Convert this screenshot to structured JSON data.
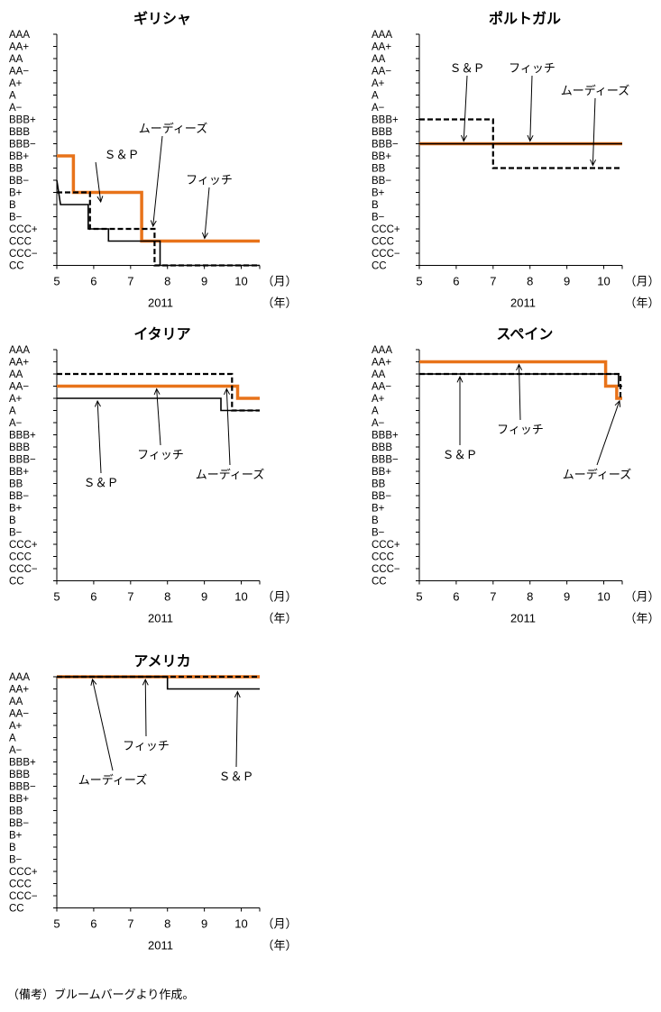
{
  "figure_note": "（備考）ブルームバーグより作成。",
  "colors": {
    "S&P": "#000000",
    "フィッチ": "#E8731A",
    "ムーディーズ": "#000000"
  },
  "chart_data": [
    {
      "type": "line",
      "step": true,
      "title": "ギリシャ",
      "rating_scale": [
        "AAA",
        "AA+",
        "AA",
        "AA−",
        "A+",
        "A",
        "A−",
        "BBB+",
        "BBB",
        "BBB−",
        "BB+",
        "BB",
        "BB−",
        "B+",
        "B",
        "B−",
        "CCC+",
        "CCC",
        "CCC−",
        "CC"
      ],
      "x_ticks": [
        "5",
        "6",
        "7",
        "8",
        "9",
        "10"
      ],
      "x_unit": "（月）",
      "year_label": "2011",
      "year_unit": "（年）",
      "xlim": [
        5,
        10.5
      ],
      "series": [
        {
          "name": "S＆P",
          "style": "solid-thin",
          "points": [
            [
              5,
              "BB−"
            ],
            [
              5.1,
              "B"
            ],
            [
              5.85,
              "B"
            ],
            [
              5.85,
              "CCC+"
            ],
            [
              6.4,
              "CCC+"
            ],
            [
              6.4,
              "CCC"
            ],
            [
              7.8,
              "CCC"
            ],
            [
              7.8,
              "CC"
            ],
            [
              10.5,
              "CC"
            ]
          ]
        },
        {
          "name": "フィッチ",
          "style": "thick-orange",
          "points": [
            [
              5,
              "BB+"
            ],
            [
              5.45,
              "BB+"
            ],
            [
              5.45,
              "B+"
            ],
            [
              7.3,
              "B+"
            ],
            [
              7.3,
              "CCC"
            ],
            [
              10.5,
              "CCC"
            ]
          ]
        },
        {
          "name": "ムーディーズ",
          "style": "dashed",
          "points": [
            [
              5,
              "B+"
            ],
            [
              5.9,
              "B+"
            ],
            [
              5.9,
              "CCC+"
            ],
            [
              7.65,
              "CCC+"
            ],
            [
              7.65,
              "CC"
            ],
            [
              10.5,
              "CC"
            ]
          ]
        }
      ],
      "annotations": [
        {
          "text": "ムーディーズ",
          "target_x": 7.6,
          "target_y": "CCC+"
        },
        {
          "text": "Ｓ＆Ｐ",
          "target_x": 6.2,
          "target_y": "B"
        },
        {
          "text": "フィッチ",
          "target_x": 9.0,
          "target_y": "CCC"
        }
      ]
    },
    {
      "type": "line",
      "step": true,
      "title": "ポルトガル",
      "rating_scale": [
        "AAA",
        "AA+",
        "AA",
        "AA−",
        "A+",
        "A",
        "A−",
        "BBB+",
        "BBB",
        "BBB−",
        "BB+",
        "BB",
        "BB−",
        "B+",
        "B",
        "B−",
        "CCC+",
        "CCC",
        "CCC−",
        "CC"
      ],
      "x_ticks": [
        "5",
        "6",
        "7",
        "8",
        "9",
        "10"
      ],
      "x_unit": "（月）",
      "year_label": "2011",
      "year_unit": "（年）",
      "xlim": [
        5,
        10.5
      ],
      "series": [
        {
          "name": "S＆P",
          "style": "solid-thin",
          "points": [
            [
              5,
              "BBB−"
            ],
            [
              10.5,
              "BBB−"
            ]
          ]
        },
        {
          "name": "フィッチ",
          "style": "thick-orange",
          "points": [
            [
              5,
              "BBB−"
            ],
            [
              10.5,
              "BBB−"
            ]
          ]
        },
        {
          "name": "ムーディーズ",
          "style": "dashed",
          "points": [
            [
              5,
              "BBB+"
            ],
            [
              7.0,
              "BBB+"
            ],
            [
              7.0,
              "BB"
            ],
            [
              10.5,
              "BB"
            ]
          ]
        }
      ],
      "annotations": [
        {
          "text": "Ｓ＆Ｐ",
          "target_x": 6.2,
          "target_y": "BBB−"
        },
        {
          "text": "フィッチ",
          "target_x": 8.0,
          "target_y": "BBB−"
        },
        {
          "text": "ムーディーズ",
          "target_x": 9.7,
          "target_y": "BB"
        }
      ]
    },
    {
      "type": "line",
      "step": true,
      "title": "イタリア",
      "rating_scale": [
        "AAA",
        "AA+",
        "AA",
        "AA−",
        "A+",
        "A",
        "A−",
        "BBB+",
        "BBB",
        "BBB−",
        "BB+",
        "BB",
        "BB−",
        "B+",
        "B",
        "B−",
        "CCC+",
        "CCC",
        "CCC−",
        "CC"
      ],
      "x_ticks": [
        "5",
        "6",
        "7",
        "8",
        "9",
        "10"
      ],
      "x_unit": "（月）",
      "year_label": "2011",
      "year_unit": "（年）",
      "xlim": [
        5,
        10.5
      ],
      "series": [
        {
          "name": "S＆P",
          "style": "solid-thin",
          "points": [
            [
              5,
              "A+"
            ],
            [
              9.45,
              "A+"
            ],
            [
              9.45,
              "A"
            ],
            [
              10.5,
              "A"
            ]
          ]
        },
        {
          "name": "フィッチ",
          "style": "thick-orange",
          "points": [
            [
              5,
              "AA−"
            ],
            [
              9.9,
              "AA−"
            ],
            [
              9.9,
              "A+"
            ],
            [
              10.5,
              "A+"
            ]
          ]
        },
        {
          "name": "ムーディーズ",
          "style": "dashed",
          "points": [
            [
              5,
              "AA"
            ],
            [
              9.75,
              "AA"
            ],
            [
              9.75,
              "A"
            ],
            [
              10.5,
              "A"
            ]
          ]
        }
      ],
      "annotations": [
        {
          "text": "Ｓ＆Ｐ",
          "target_x": 6.1,
          "target_y": "A+"
        },
        {
          "text": "フィッチ",
          "target_x": 7.7,
          "target_y": "AA−"
        },
        {
          "text": "ムーディーズ",
          "target_x": 9.6,
          "target_y": "AA−"
        }
      ]
    },
    {
      "type": "line",
      "step": true,
      "title": "スペイン",
      "rating_scale": [
        "AAA",
        "AA+",
        "AA",
        "AA−",
        "A+",
        "A",
        "A−",
        "BBB+",
        "BBB",
        "BBB−",
        "BB+",
        "BB",
        "BB−",
        "B+",
        "B",
        "B−",
        "CCC+",
        "CCC",
        "CCC−",
        "CC"
      ],
      "x_ticks": [
        "5",
        "6",
        "7",
        "8",
        "9",
        "10"
      ],
      "x_unit": "（月）",
      "year_label": "2011",
      "year_unit": "（年）",
      "xlim": [
        5,
        10.5
      ],
      "series": [
        {
          "name": "S＆P",
          "style": "solid-thin",
          "points": [
            [
              5,
              "AA"
            ],
            [
              10.4,
              "AA"
            ],
            [
              10.4,
              "AA−"
            ],
            [
              10.5,
              "AA−"
            ]
          ]
        },
        {
          "name": "フィッチ",
          "style": "thick-orange",
          "points": [
            [
              5,
              "AA+"
            ],
            [
              10.05,
              "AA+"
            ],
            [
              10.05,
              "AA−"
            ],
            [
              10.35,
              "AA−"
            ],
            [
              10.35,
              "A+"
            ],
            [
              10.5,
              "A+"
            ]
          ]
        },
        {
          "name": "ムーディーズ",
          "style": "dashed",
          "points": [
            [
              5,
              "AA"
            ],
            [
              10.45,
              "AA"
            ],
            [
              10.45,
              "A+"
            ],
            [
              10.5,
              "A+"
            ]
          ]
        }
      ],
      "annotations": [
        {
          "text": "Ｓ＆Ｐ",
          "target_x": 6.1,
          "target_y": "AA"
        },
        {
          "text": "フィッチ",
          "target_x": 7.7,
          "target_y": "AA+"
        },
        {
          "text": "ムーディーズ",
          "target_x": 10.45,
          "target_y": "A+"
        }
      ]
    },
    {
      "type": "line",
      "step": true,
      "title": "アメリカ",
      "rating_scale": [
        "AAA",
        "AA+",
        "AA",
        "AA−",
        "A+",
        "A",
        "A−",
        "BBB+",
        "BBB",
        "BBB−",
        "BB+",
        "BB",
        "BB−",
        "B+",
        "B",
        "B−",
        "CCC+",
        "CCC",
        "CCC−",
        "CC"
      ],
      "x_ticks": [
        "5",
        "6",
        "7",
        "8",
        "9",
        "10"
      ],
      "x_unit": "（月）",
      "year_label": "2011",
      "year_unit": "（年）",
      "xlim": [
        5,
        10.5
      ],
      "series": [
        {
          "name": "S＆P",
          "style": "solid-thin",
          "points": [
            [
              5,
              "AAA"
            ],
            [
              8.0,
              "AAA"
            ],
            [
              8.0,
              "AA+"
            ],
            [
              10.5,
              "AA+"
            ]
          ]
        },
        {
          "name": "フィッチ",
          "style": "thick-orange",
          "points": [
            [
              5,
              "AAA"
            ],
            [
              10.5,
              "AAA"
            ]
          ]
        },
        {
          "name": "ムーディーズ",
          "style": "dashed",
          "points": [
            [
              5,
              "AAA"
            ],
            [
              10.5,
              "AAA"
            ]
          ]
        }
      ],
      "annotations": [
        {
          "text": "ムーディーズ",
          "target_x": 5.95,
          "target_y": "AAA"
        },
        {
          "text": "フィッチ",
          "target_x": 7.4,
          "target_y": "AAA"
        },
        {
          "text": "Ｓ＆Ｐ",
          "target_x": 9.9,
          "target_y": "AA+"
        }
      ]
    }
  ]
}
